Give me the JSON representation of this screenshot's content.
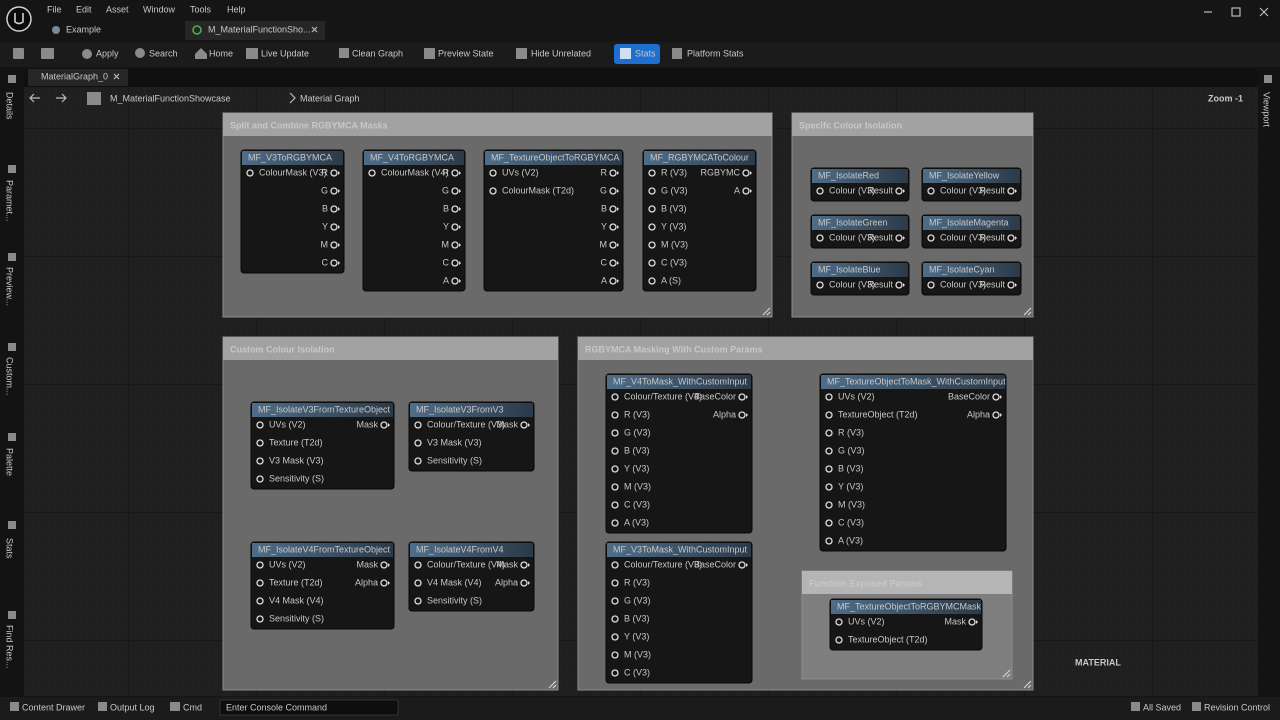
{
  "menu": [
    "File",
    "Edit",
    "Asset",
    "Window",
    "Tools",
    "Help"
  ],
  "tabs": [
    "Example",
    "M_MaterialFunctionSho..."
  ],
  "toolbar": [
    "Apply",
    "Search",
    "Home",
    "Live Update",
    "Clean Graph",
    "Preview State",
    "Hide Unrelated",
    "Stats",
    "Platform Stats"
  ],
  "graph_tab": "MaterialGraph_0",
  "breadcrumb": [
    "M_MaterialFunctionShowcase",
    "Material Graph"
  ],
  "zoom": "Zoom -1",
  "left_panels": [
    "Details",
    "Paramet...",
    "Preview...",
    "Custom...",
    "Palette",
    "Stats",
    "Find Res..."
  ],
  "right_panels": [
    "Viewport"
  ],
  "watermark": "MATERIAL",
  "comments": [
    {
      "title": "Split and Combine RGBYMCA Masks",
      "nodes": [
        {
          "title": "MF_V3ToRGBYMCA",
          "inputs": [
            "ColourMask (V3)"
          ],
          "outputs": [
            "R",
            "G",
            "B",
            "Y",
            "M",
            "C"
          ]
        },
        {
          "title": "MF_V4ToRGBYMCA",
          "inputs": [
            "ColourMask (V4)"
          ],
          "outputs": [
            "R",
            "G",
            "B",
            "Y",
            "M",
            "C",
            "A"
          ]
        },
        {
          "title": "MF_TextureObjectToRGBYMCA",
          "inputs": [
            "UVs (V2)",
            "ColourMask (T2d)"
          ],
          "outputs": [
            "R",
            "G",
            "B",
            "Y",
            "M",
            "C",
            "A"
          ]
        },
        {
          "title": "MF_RGBYMCAToColour",
          "inputs": [
            "R (V3)",
            "G (V3)",
            "B (V3)",
            "Y (V3)",
            "M (V3)",
            "C (V3)",
            "A (S)"
          ],
          "outputs": [
            "RGBYMC",
            "A"
          ]
        }
      ]
    },
    {
      "title": "Specifc Colour Isolation",
      "nodes": [
        {
          "title": "MF_IsolateRed",
          "inputs": [
            "Colour (V3)"
          ],
          "outputs": [
            "Result"
          ]
        },
        {
          "title": "MF_IsolateYellow",
          "inputs": [
            "Colour (V3)"
          ],
          "outputs": [
            "Result"
          ]
        },
        {
          "title": "MF_IsolateGreen",
          "inputs": [
            "Colour (V3)"
          ],
          "outputs": [
            "Result"
          ]
        },
        {
          "title": "MF_IsolateMagenta",
          "inputs": [
            "Colour (V3)"
          ],
          "outputs": [
            "Result"
          ]
        },
        {
          "title": "MF_IsolateBlue",
          "inputs": [
            "Colour (V3)"
          ],
          "outputs": [
            "Result"
          ]
        },
        {
          "title": "MF_IsolateCyan",
          "inputs": [
            "Colour (V3)"
          ],
          "outputs": [
            "Result"
          ]
        }
      ]
    },
    {
      "title": "Custom Colour Isolation",
      "nodes": [
        {
          "title": "MF_IsolateV3FromTextureObject",
          "inputs": [
            "UVs (V2)",
            "Texture (T2d)",
            "V3 Mask (V3)",
            "Sensitivity (S)"
          ],
          "outputs": [
            "Mask"
          ]
        },
        {
          "title": "MF_IsolateV3FromV3",
          "inputs": [
            "Colour/Texture (V3)",
            "V3 Mask (V3)",
            "Sensitivity (S)"
          ],
          "outputs": [
            "Mask"
          ]
        },
        {
          "title": "MF_IsolateV4FromTextureObject",
          "inputs": [
            "UVs (V2)",
            "Texture (T2d)",
            "V4 Mask (V4)",
            "Sensitivity (S)"
          ],
          "outputs": [
            "Mask",
            "Alpha"
          ]
        },
        {
          "title": "MF_IsolateV4FromV4",
          "inputs": [
            "Colour/Texture (V4)",
            "V4 Mask (V4)",
            "Sensitivity (S)"
          ],
          "outputs": [
            "Mask",
            "Alpha"
          ]
        }
      ]
    },
    {
      "title": "RGBYMCA Masking With Custom Params",
      "nodes": [
        {
          "title": "MF_V4ToMask_WithCustomInput",
          "inputs": [
            "Colour/Texture (V4)",
            "R (V3)",
            "G (V3)",
            "B (V3)",
            "Y (V3)",
            "M (V3)",
            "C (V3)",
            "A (V3)"
          ],
          "outputs": [
            "BaseColor",
            "Alpha"
          ]
        },
        {
          "title": "MF_TextureObjectToMask_WithCustomInput",
          "inputs": [
            "UVs (V2)",
            "TextureObject (T2d)",
            "R (V3)",
            "G (V3)",
            "B (V3)",
            "Y (V3)",
            "M (V3)",
            "C (V3)",
            "A (V3)"
          ],
          "outputs": [
            "BaseColor",
            "Alpha"
          ]
        },
        {
          "title": "MF_V3ToMask_WithCustomInput",
          "inputs": [
            "Colour/Texture (V3)",
            "R (V3)",
            "G (V3)",
            "B (V3)",
            "Y (V3)",
            "M (V3)",
            "C (V3)"
          ],
          "outputs": [
            "BaseColor"
          ]
        }
      ]
    },
    {
      "title": "Function Exposed Params",
      "nodes": [
        {
          "title": "MF_TextureObjectToRGBYMCMask",
          "inputs": [
            "UVs (V2)",
            "TextureObject (T2d)"
          ],
          "outputs": [
            "Mask"
          ]
        }
      ]
    }
  ],
  "status_bar": [
    "Content Drawer",
    "Output Log",
    "Cmd",
    "Enter Console Command",
    "All Saved",
    "Revision Control"
  ]
}
